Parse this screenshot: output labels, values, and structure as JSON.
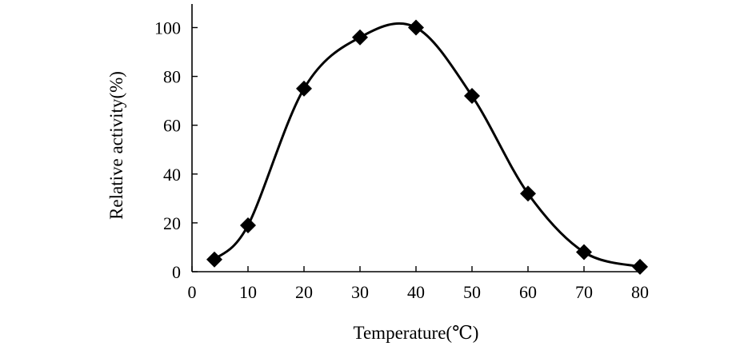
{
  "chart_data": {
    "type": "line",
    "title": "",
    "xlabel": "Temperature(℃)",
    "ylabel": "Relative activity(%)",
    "xlim": [
      0,
      80
    ],
    "ylim": [
      0,
      110
    ],
    "x_ticks": [
      0,
      10,
      20,
      30,
      40,
      50,
      60,
      70,
      80
    ],
    "y_ticks": [
      0,
      20,
      40,
      60,
      80,
      100
    ],
    "grid": false,
    "legend": "none",
    "marker": "diamond",
    "color": "#000000",
    "series": [
      {
        "x": [
          4,
          10,
          20,
          30,
          40,
          50,
          60,
          70,
          80
        ],
        "y": [
          5,
          19,
          75,
          96,
          100,
          72,
          32,
          8,
          2
        ]
      }
    ]
  }
}
